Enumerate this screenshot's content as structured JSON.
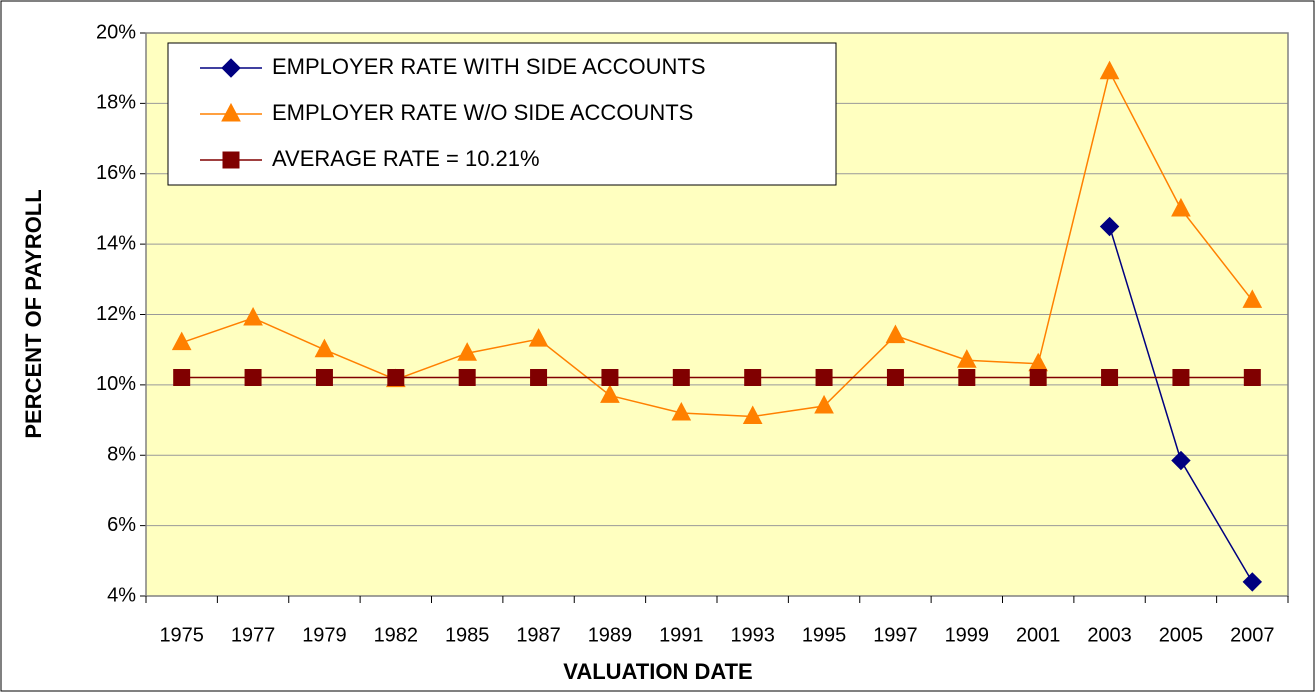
{
  "chart_data": {
    "type": "line",
    "x_label": "VALUATION DATE",
    "y_label": "PERCENT OF PAYROLL",
    "categories": [
      "1975",
      "1977",
      "1979",
      "1982",
      "1985",
      "1987",
      "1989",
      "1991",
      "1993",
      "1995",
      "1997",
      "1999",
      "2001",
      "2003",
      "2005",
      "2007"
    ],
    "series": [
      {
        "name": "EMPLOYER RATE WITH SIDE ACCOUNTS",
        "color": "#000080",
        "marker": "diamond",
        "values": [
          null,
          null,
          null,
          null,
          null,
          null,
          null,
          null,
          null,
          null,
          null,
          null,
          null,
          14.5,
          7.85,
          4.4
        ]
      },
      {
        "name": "EMPLOYER RATE W/O SIDE ACCOUNTS",
        "color": "#FF8000",
        "marker": "triangle",
        "values": [
          11.2,
          11.9,
          11.0,
          10.15,
          10.9,
          11.3,
          9.7,
          9.2,
          9.1,
          9.4,
          11.4,
          10.7,
          10.6,
          18.9,
          15.0,
          12.4
        ]
      },
      {
        "name": "AVERAGE RATE  = 10.21%",
        "color": "#800000",
        "marker": "square",
        "values": [
          10.21,
          10.21,
          10.21,
          10.21,
          10.21,
          10.21,
          10.21,
          10.21,
          10.21,
          10.21,
          10.21,
          10.21,
          10.21,
          10.21,
          10.21,
          10.21
        ]
      }
    ],
    "ylim": [
      4,
      20
    ],
    "yticks": [
      {
        "value": 4,
        "label": "4%"
      },
      {
        "value": 6,
        "label": "6%"
      },
      {
        "value": 8,
        "label": "8%"
      },
      {
        "value": 10,
        "label": "10%"
      },
      {
        "value": 12,
        "label": "12%"
      },
      {
        "value": 14,
        "label": "14%"
      },
      {
        "value": 16,
        "label": "16%"
      },
      {
        "value": 18,
        "label": "18%"
      },
      {
        "value": 20,
        "label": "20%"
      }
    ],
    "grid": true,
    "legend": "top-left",
    "plot_background": "#FFFFC0"
  }
}
